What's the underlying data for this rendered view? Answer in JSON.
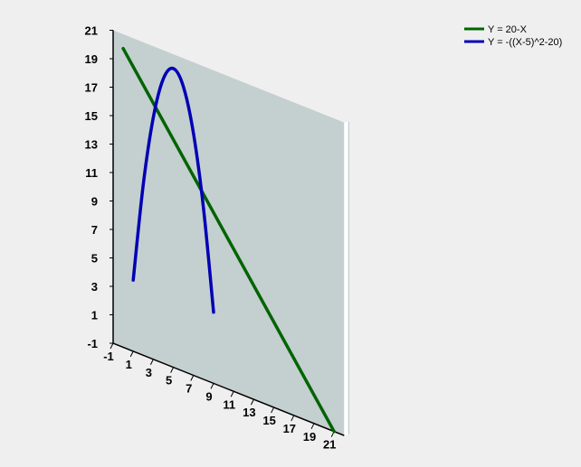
{
  "chart_data": {
    "type": "line",
    "title": "",
    "xlabel": "",
    "ylabel": "",
    "xlim": [
      -1,
      22
    ],
    "ylim": [
      -1,
      21
    ],
    "x_ticks": [
      "-1",
      "1",
      "3",
      "5",
      "7",
      "9",
      "11",
      "13",
      "15",
      "17",
      "19",
      "21"
    ],
    "y_ticks": [
      "-1",
      "1",
      "3",
      "5",
      "7",
      "9",
      "11",
      "13",
      "15",
      "17",
      "19",
      "21"
    ],
    "grid": false,
    "legend_position": "top-right",
    "series": [
      {
        "name": "Y = 20-X",
        "color": "#006400",
        "x": [
          0,
          21
        ],
        "y": [
          20,
          -1
        ]
      },
      {
        "name": "Y = -((X-5)^2-20)",
        "color": "#0000b4",
        "x": [
          1,
          2,
          3,
          4,
          5,
          6,
          7,
          8,
          9
        ],
        "y": [
          4,
          11,
          16,
          19,
          20,
          19,
          16,
          11,
          4
        ]
      }
    ]
  },
  "colors": {
    "background": "#efefef",
    "plot_wall": "#c4cfd0",
    "wall_edge": "#ffffff",
    "axis": "#000000"
  }
}
